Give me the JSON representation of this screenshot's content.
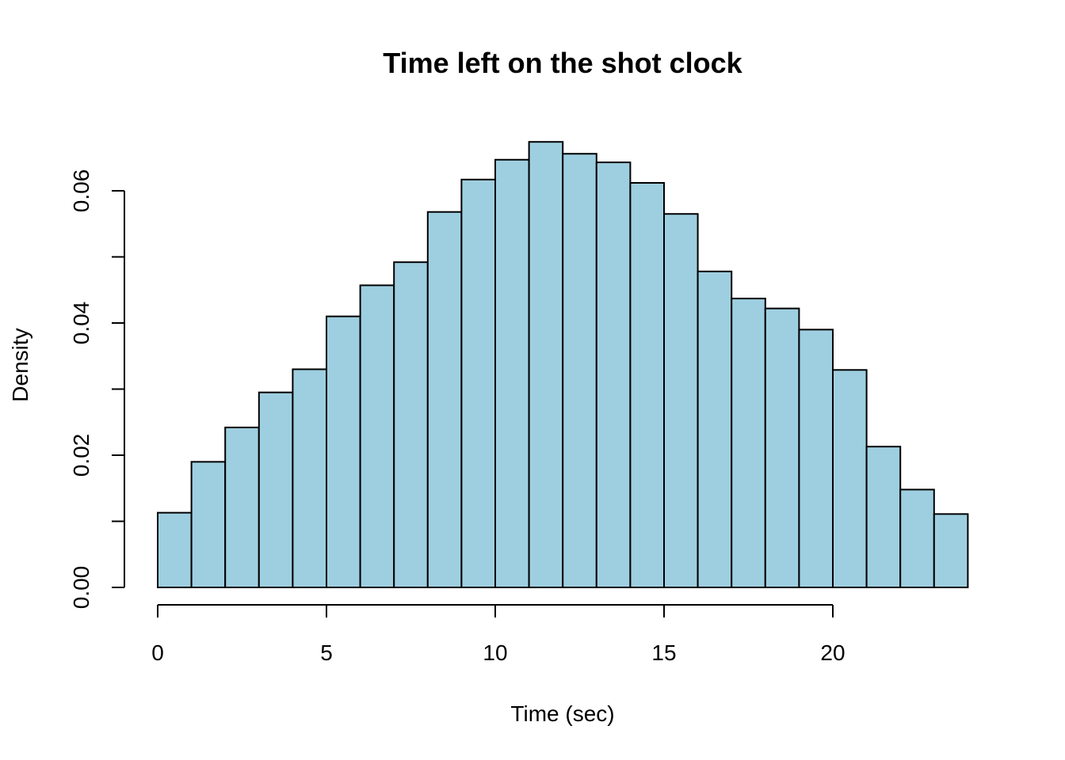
{
  "chart_data": {
    "type": "bar",
    "subtype": "histogram",
    "title": "Time left on the shot clock",
    "xlabel": "Time (sec)",
    "ylabel": "Density",
    "bar_color": "#9ecfe0",
    "edge_color": "#000000",
    "bin_edges": [
      0,
      1,
      2,
      3,
      4,
      5,
      6,
      7,
      8,
      9,
      10,
      11,
      12,
      13,
      14,
      15,
      16,
      17,
      18,
      19,
      20,
      21,
      22,
      23,
      24
    ],
    "values": [
      0.0113,
      0.019,
      0.0242,
      0.0295,
      0.033,
      0.041,
      0.0457,
      0.0492,
      0.0568,
      0.0617,
      0.0647,
      0.0674,
      0.0656,
      0.0643,
      0.0612,
      0.0565,
      0.0478,
      0.0437,
      0.0422,
      0.039,
      0.0329,
      0.0213,
      0.0148,
      0.0111
    ],
    "xlim": [
      0,
      24
    ],
    "ylim": [
      0,
      0.06
    ],
    "x_ticks": [
      0,
      5,
      10,
      15,
      20
    ],
    "x_tick_labels": [
      "0",
      "5",
      "10",
      "15",
      "20"
    ],
    "y_ticks": [
      0,
      0.01,
      0.02,
      0.03,
      0.04,
      0.05,
      0.06
    ],
    "y_tick_labels": [
      "0.00",
      "",
      "0.02",
      "",
      "0.04",
      "",
      "0.06"
    ],
    "grid": false,
    "legend": false
  }
}
